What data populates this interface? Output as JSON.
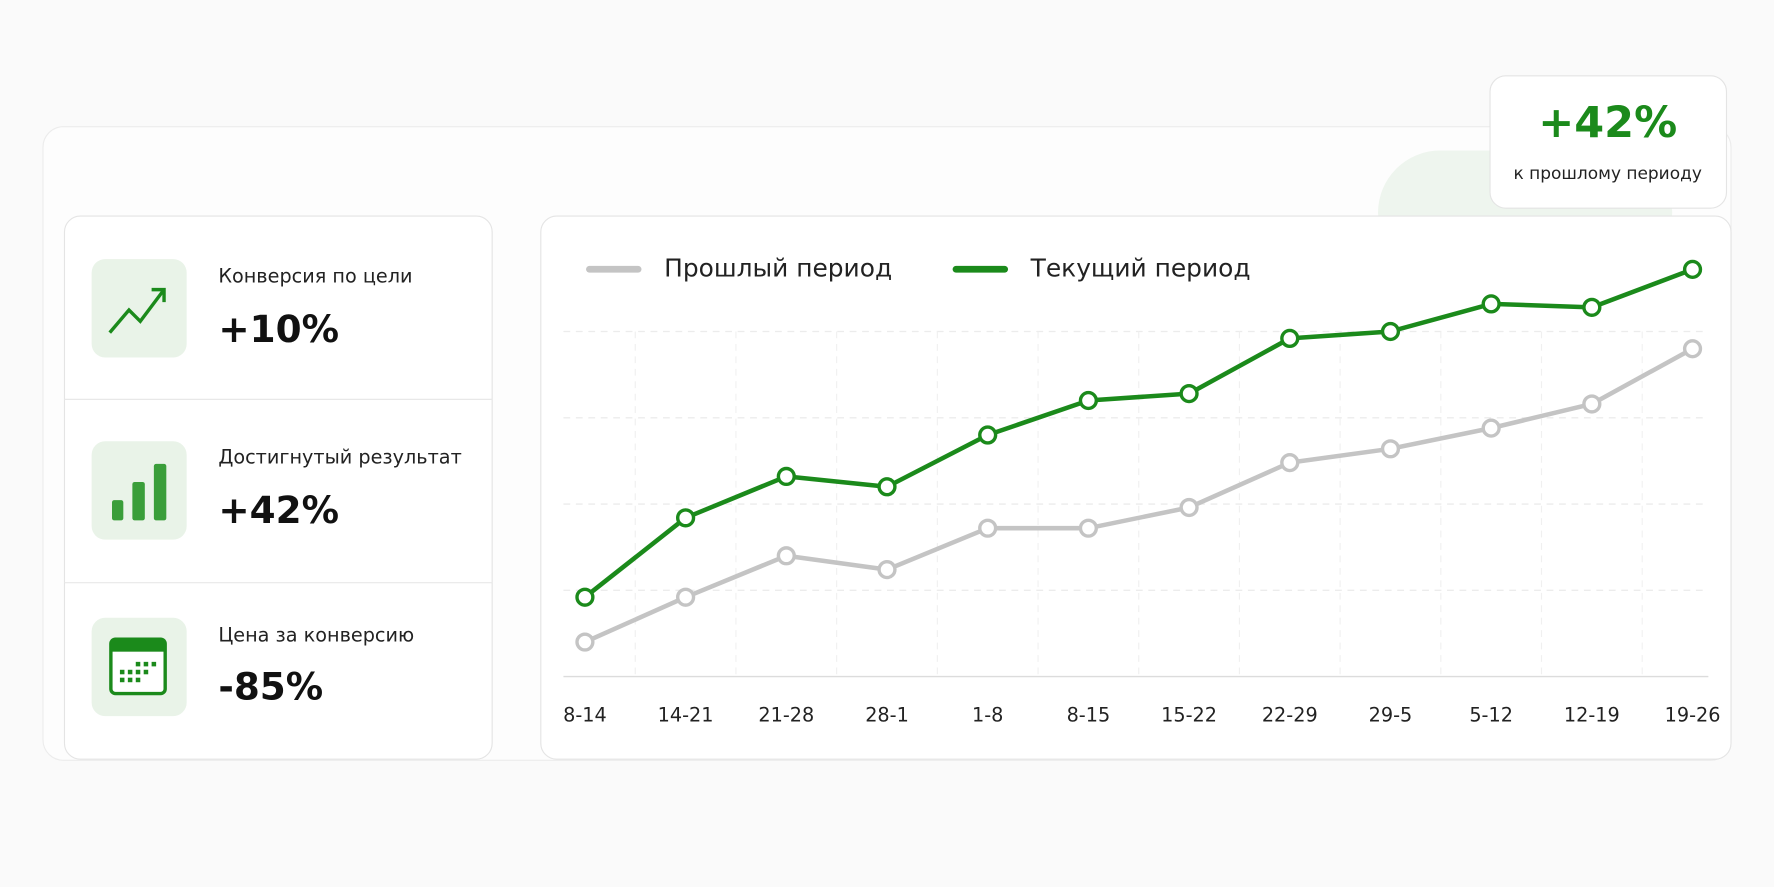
{
  "badge": {
    "value": "+42%",
    "caption": "к прошлому периоду"
  },
  "metrics": [
    {
      "label": "Конверсия по цели",
      "value": "+10%"
    },
    {
      "label": "Достигнутый результат",
      "value": "+42%"
    },
    {
      "label": "Цена за конверсию",
      "value": "-85%"
    }
  ],
  "chart_data": {
    "type": "line",
    "categories": [
      "8-14",
      "14-21",
      "21-28",
      "28-1",
      "1-8",
      "8-15",
      "15-22",
      "22-29",
      "29-5",
      "5-12",
      "12-19",
      "19-26"
    ],
    "series": [
      {
        "name": "Прошлый период",
        "color": "#c4c4c4",
        "values": [
          10,
          23,
          35,
          31,
          43,
          43,
          49,
          62,
          66,
          72,
          79,
          95
        ]
      },
      {
        "name": "Текущий период",
        "color": "#1b8a1b",
        "values": [
          23,
          46,
          58,
          55,
          70,
          80,
          82,
          98,
          100,
          108,
          107,
          118
        ]
      }
    ],
    "ylim": [
      0,
      120
    ],
    "yticks": [
      0,
      25,
      50,
      75,
      100
    ],
    "grid": true
  }
}
